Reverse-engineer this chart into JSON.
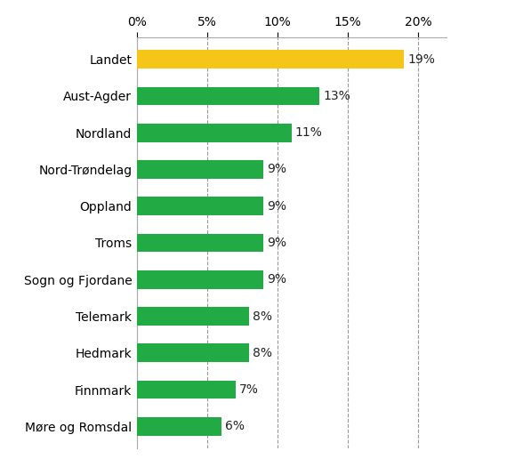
{
  "categories": [
    "Møre og Romsdal",
    "Finnmark",
    "Hedmark",
    "Telemark",
    "Sogn og Fjordane",
    "Troms",
    "Oppland",
    "Nord-Trøndelag",
    "Nordland",
    "Aust-Agder",
    "Landet"
  ],
  "values": [
    6,
    7,
    8,
    8,
    9,
    9,
    9,
    9,
    11,
    13,
    19
  ],
  "bar_colors": [
    "#22aa44",
    "#22aa44",
    "#22aa44",
    "#22aa44",
    "#22aa44",
    "#22aa44",
    "#22aa44",
    "#22aa44",
    "#22aa44",
    "#22aa44",
    "#f5c518"
  ],
  "label_color": "#222222",
  "background_color": "#ffffff",
  "xlim": [
    0,
    22
  ],
  "xticks": [
    0,
    5,
    10,
    15,
    20
  ],
  "xtick_labels": [
    "0%",
    "5%",
    "10%",
    "15%",
    "20%"
  ],
  "grid_color": "#999999",
  "bar_height": 0.5,
  "label_fontsize": 10,
  "tick_fontsize": 10,
  "spine_color": "#aaaaaa"
}
